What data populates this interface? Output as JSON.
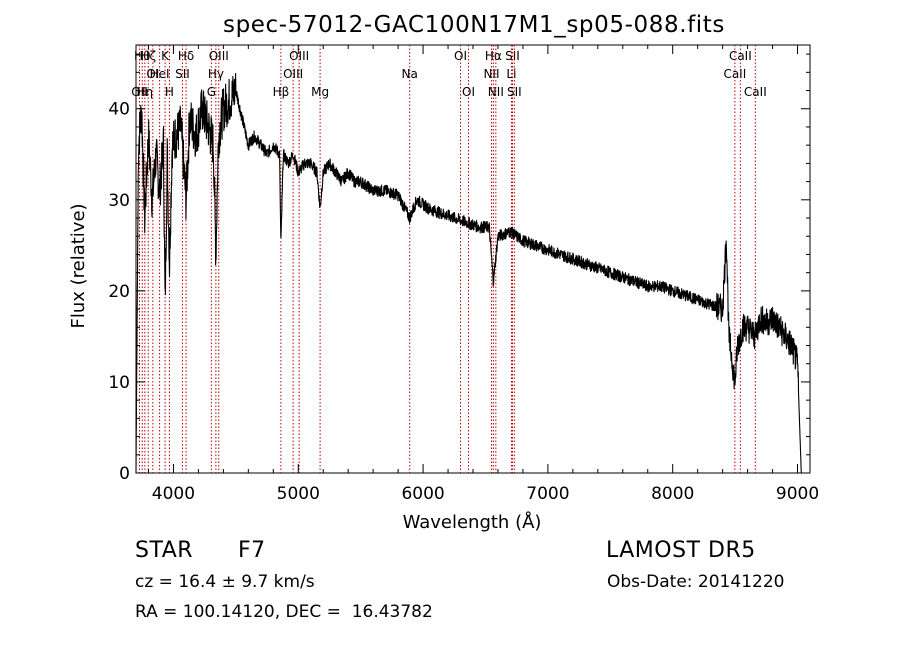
{
  "chart_data": {
    "type": "line",
    "title": "spec-57012-GAC100N17M1_sp05-088.fits",
    "xlabel": "Wavelength (Å)",
    "ylabel": "Flux (relative)",
    "xlim": [
      3700,
      9100
    ],
    "ylim": [
      0,
      47
    ],
    "x_ticks": [
      4000,
      5000,
      6000,
      7000,
      8000,
      9000
    ],
    "y_ticks": [
      0,
      10,
      20,
      30,
      40
    ],
    "grid": false,
    "line_color": "#000000",
    "marker_color": "#c00000",
    "spectrum": {
      "x": [
        3700,
        3720,
        3745,
        3770,
        3800,
        3830,
        3860,
        3890,
        3920,
        3933,
        3950,
        3968,
        3990,
        4020,
        4060,
        4101,
        4130,
        4180,
        4230,
        4280,
        4320,
        4340,
        4361,
        4400,
        4450,
        4500,
        4550,
        4600,
        4650,
        4700,
        4750,
        4800,
        4850,
        4861,
        4880,
        4920,
        4960,
        5000,
        5050,
        5100,
        5150,
        5175,
        5200,
        5250,
        5300,
        5350,
        5400,
        5450,
        5500,
        5600,
        5700,
        5800,
        5893,
        5950,
        6050,
        6150,
        6250,
        6350,
        6450,
        6530,
        6563,
        6600,
        6700,
        6800,
        6900,
        7000,
        7100,
        7200,
        7300,
        7400,
        7500,
        7600,
        7700,
        7800,
        7900,
        8000,
        8100,
        8200,
        8300,
        8400,
        8430,
        8450,
        8480,
        8498,
        8520,
        8542,
        8560,
        8600,
        8662,
        8700,
        8750,
        8800,
        8850,
        8900,
        8950,
        9000,
        9030
      ],
      "y": [
        0,
        36,
        40,
        28,
        37,
        30,
        35,
        31,
        36,
        18,
        35,
        23,
        36,
        37,
        38,
        30,
        39,
        37,
        40,
        38,
        36,
        24,
        37,
        40,
        41,
        42,
        39,
        36,
        37,
        36,
        35,
        36,
        35,
        25,
        35,
        34,
        35,
        33,
        34,
        34,
        33,
        29,
        33,
        34,
        33,
        32,
        33,
        32,
        32,
        31,
        31,
        30.5,
        28,
        30,
        29,
        28.5,
        28,
        27.5,
        27,
        27,
        21,
        26,
        26.5,
        25.5,
        25,
        24.5,
        24,
        23.5,
        23,
        22.5,
        22,
        21.5,
        21,
        20.5,
        20.5,
        20,
        19.5,
        19,
        18.5,
        18,
        26,
        15,
        12,
        10,
        14,
        15,
        16,
        16,
        15,
        17,
        16.5,
        17,
        16,
        15,
        14,
        12,
        0
      ]
    },
    "line_markers": [
      {
        "wavelength": 3728,
        "labels": [
          "OII"
        ],
        "row": 3
      },
      {
        "wavelength": 3750,
        "labels": [
          "Hθ"
        ],
        "row": 1
      },
      {
        "wavelength": 3771,
        "labels": [
          "Hη"
        ],
        "row": 3
      },
      {
        "wavelength": 3798,
        "labels": [
          "Hζ"
        ],
        "row": 1
      },
      {
        "wavelength": 3835,
        "labels": [
          "OI"
        ],
        "row": 2
      },
      {
        "wavelength": 3889,
        "labels": [
          "HeI"
        ],
        "row": 2
      },
      {
        "wavelength": 3933,
        "labels": [
          "K"
        ],
        "row": 1
      },
      {
        "wavelength": 3968,
        "labels": [
          "H"
        ],
        "row": 3
      },
      {
        "wavelength": 4072,
        "labels": [
          "SII"
        ],
        "row": 2
      },
      {
        "wavelength": 4101,
        "labels": [
          "Hδ"
        ],
        "row": 1
      },
      {
        "wavelength": 4304,
        "labels": [
          "G"
        ],
        "row": 3
      },
      {
        "wavelength": 4340,
        "labels": [
          "Hγ"
        ],
        "row": 2
      },
      {
        "wavelength": 4363,
        "labels": [
          "OIII"
        ],
        "row": 1
      },
      {
        "wavelength": 4861,
        "labels": [
          "Hβ"
        ],
        "row": 3
      },
      {
        "wavelength": 4959,
        "labels": [
          "OIII"
        ],
        "row": 2
      },
      {
        "wavelength": 5007,
        "labels": [
          "OIII"
        ],
        "row": 1
      },
      {
        "wavelength": 5175,
        "labels": [
          "Mg"
        ],
        "row": 3
      },
      {
        "wavelength": 5893,
        "labels": [
          "Na"
        ],
        "row": 2
      },
      {
        "wavelength": 6300,
        "labels": [
          "OI"
        ],
        "row": 1
      },
      {
        "wavelength": 6364,
        "labels": [
          "OI"
        ],
        "row": 3
      },
      {
        "wavelength": 6548,
        "labels": [
          "NII"
        ],
        "row": 2
      },
      {
        "wavelength": 6563,
        "labels": [
          "Hα"
        ],
        "row": 1
      },
      {
        "wavelength": 6583,
        "labels": [
          "NII"
        ],
        "row": 3
      },
      {
        "wavelength": 6708,
        "labels": [
          "Li"
        ],
        "row": 2
      },
      {
        "wavelength": 6716,
        "labels": [
          "SII"
        ],
        "row": 1
      },
      {
        "wavelength": 6731,
        "labels": [
          "SII"
        ],
        "row": 3
      },
      {
        "wavelength": 8498,
        "labels": [
          "CaII"
        ],
        "row": 2
      },
      {
        "wavelength": 8542,
        "labels": [
          "CaII"
        ],
        "row": 1
      },
      {
        "wavelength": 8662,
        "labels": [
          "CaII"
        ],
        "row": 3
      }
    ]
  },
  "info": {
    "class_label": "STAR",
    "subclass": "F7",
    "survey": "LAMOST DR5",
    "redshift_text": "cz = 16.4 ± 9.7 km/s",
    "obs_date": "Obs-Date: 20141220",
    "coords": "RA = 100.14120, DEC =  16.43782"
  }
}
